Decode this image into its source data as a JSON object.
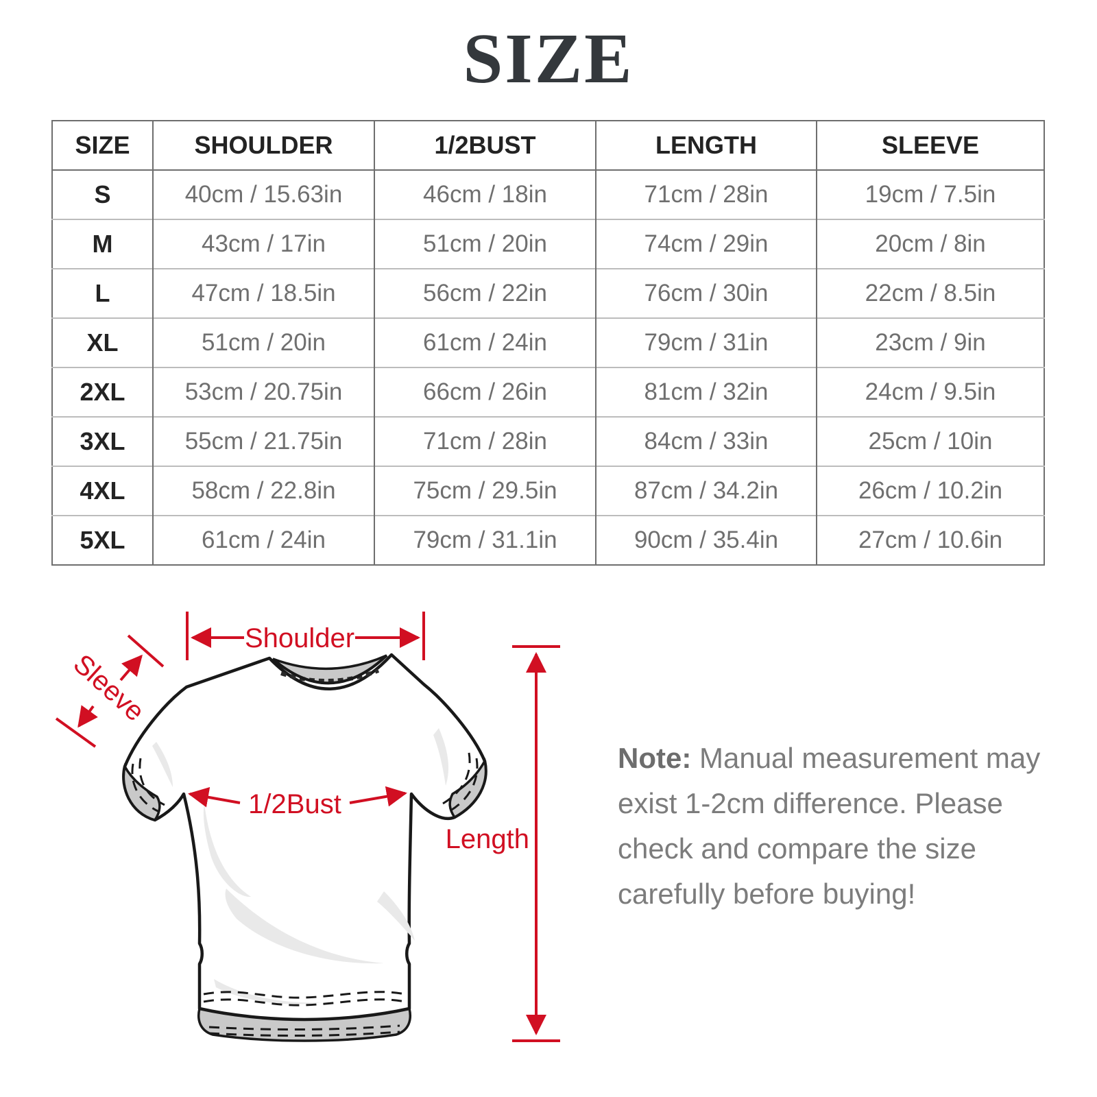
{
  "page": {
    "title": "SIZE"
  },
  "colors": {
    "accent_red": "#d10f22",
    "heading_text": "#232323",
    "cell_text": "#6f6f6f",
    "note_text": "#7c7c7c",
    "grid_dark": "#6e6e6e",
    "grid_light": "#bcbcbc",
    "shirt_shade_gray": "#c9c9c9",
    "wrinkle_gray": "#e9e9e9"
  },
  "table": {
    "headers": [
      "SIZE",
      "SHOULDER",
      "1/2BUST",
      "LENGTH",
      "SLEEVE"
    ],
    "rows": [
      {
        "size": "S",
        "cells": [
          "40cm / 15.63in",
          "46cm / 18in",
          "71cm / 28in",
          "19cm / 7.5in"
        ]
      },
      {
        "size": "M",
        "cells": [
          "43cm / 17in",
          "51cm / 20in",
          "74cm / 29in",
          "20cm / 8in"
        ]
      },
      {
        "size": "L",
        "cells": [
          "47cm / 18.5in",
          "56cm / 22in",
          "76cm / 30in",
          "22cm / 8.5in"
        ]
      },
      {
        "size": "XL",
        "cells": [
          "51cm / 20in",
          "61cm / 24in",
          "79cm / 31in",
          "23cm / 9in"
        ]
      },
      {
        "size": "2XL",
        "cells": [
          "53cm / 20.75in",
          "66cm / 26in",
          "81cm / 32in",
          "24cm / 9.5in"
        ]
      },
      {
        "size": "3XL",
        "cells": [
          "55cm / 21.75in",
          "71cm / 28in",
          "84cm / 33in",
          "25cm / 10in"
        ]
      },
      {
        "size": "4XL",
        "cells": [
          "58cm / 22.8in",
          "75cm / 29.5in",
          "87cm / 34.2in",
          "26cm / 10.2in"
        ]
      },
      {
        "size": "5XL",
        "cells": [
          "61cm / 24in",
          "79cm / 31.1in",
          "90cm / 35.4in",
          "27cm / 10.6in"
        ]
      }
    ]
  },
  "diagram": {
    "labels": {
      "shoulder": "Shoulder",
      "sleeve": "Sleeve",
      "half_bust": "1/2Bust",
      "length": "Length"
    }
  },
  "note": {
    "bold_prefix": "Note:",
    "lines": [
      "Note: Manual measurement may",
      "exist 1-2cm difference. Please",
      "check and compare the size",
      "carefully before buying!"
    ]
  }
}
